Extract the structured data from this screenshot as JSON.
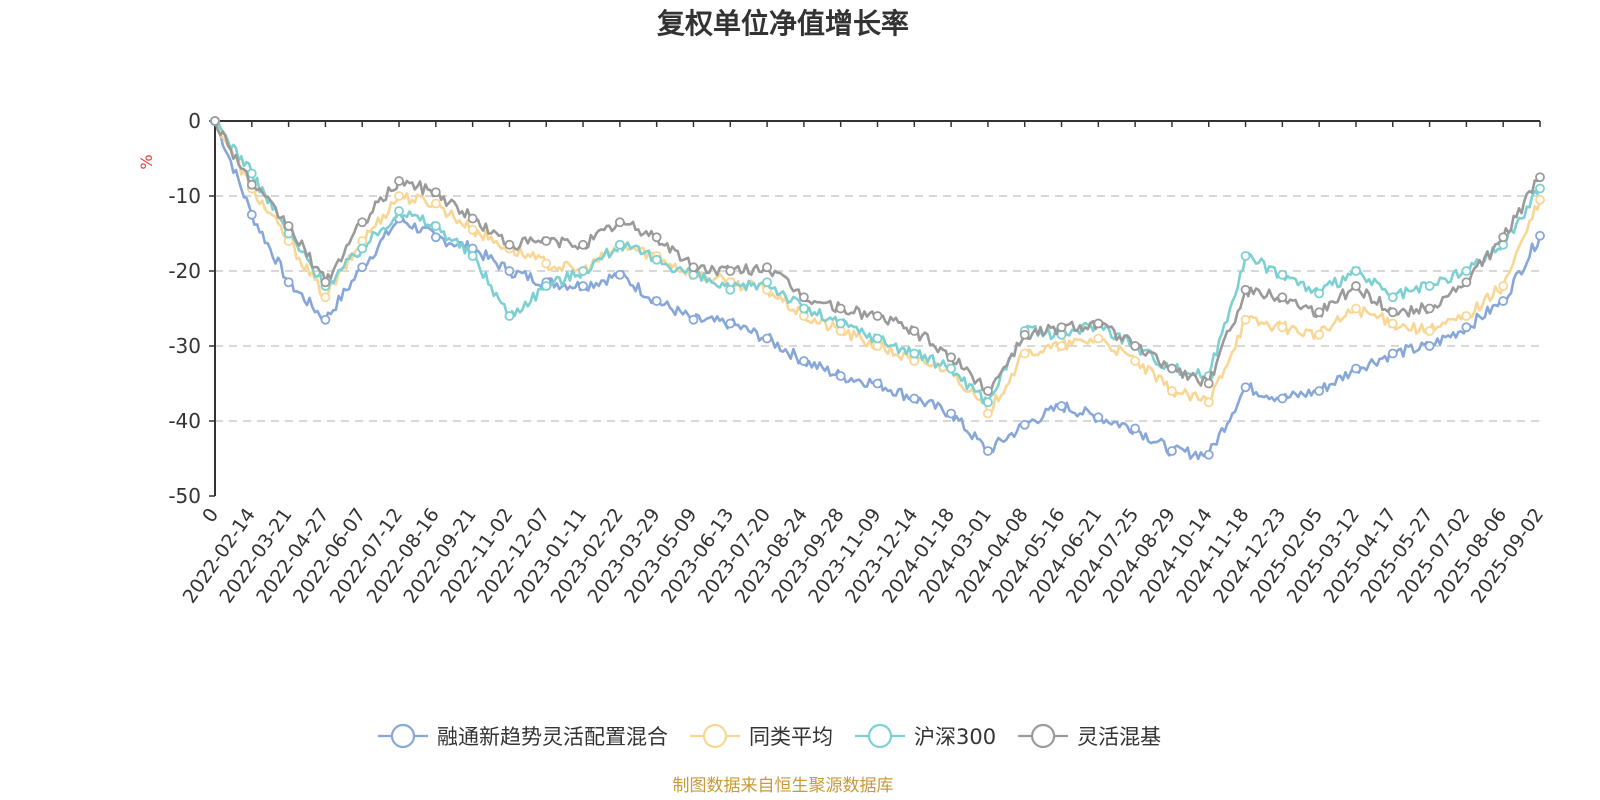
{
  "chart_data": {
    "type": "line",
    "title": "复权单位净值增长率",
    "ylabel": "%",
    "ylim": [
      -50,
      0
    ],
    "yticks": [
      0,
      -10,
      -20,
      -30,
      -40,
      -50
    ],
    "grid": true,
    "legend_position": "bottom",
    "x_tick_labels": [
      "0",
      "2022-02-14",
      "2022-03-21",
      "2022-04-27",
      "2022-06-07",
      "2022-07-12",
      "2022-08-16",
      "2022-09-21",
      "2022-11-02",
      "2022-12-07",
      "2023-01-11",
      "2023-02-22",
      "2023-03-29",
      "2023-05-09",
      "2023-06-13",
      "2023-07-20",
      "2023-08-24",
      "2023-09-28",
      "2023-11-09",
      "2023-12-14",
      "2024-01-18",
      "2024-03-01",
      "2024-04-08",
      "2024-05-16",
      "2024-06-21",
      "2024-07-25",
      "2024-08-29",
      "2024-10-14",
      "2024-11-18",
      "2024-12-23",
      "2025-02-05",
      "2025-03-12",
      "2025-04-17",
      "2025-05-27",
      "2025-07-02",
      "2025-08-06",
      "2025-09-02"
    ],
    "series": [
      {
        "name": "融通新趋势灵活配置混合",
        "color": "#87a7d9",
        "values": [
          0,
          -12.5,
          -21.5,
          -26.5,
          -19.5,
          -13,
          -15.5,
          -17,
          -20,
          -21.5,
          -22,
          -20.5,
          -24,
          -26.5,
          -27,
          -29,
          -32,
          -34,
          -35,
          -37,
          -39,
          -44,
          -40.5,
          -38,
          -39.5,
          -41,
          -44,
          -44.5,
          -35.5,
          -37,
          -36,
          -33,
          -31,
          -30,
          -27.5,
          -24,
          -15.3
        ]
      },
      {
        "name": "同类平均",
        "color": "#fad694",
        "values": [
          0,
          -9,
          -16,
          -23.5,
          -16,
          -10,
          -11,
          -14.5,
          -17,
          -19,
          -20,
          -16.5,
          -18,
          -20.5,
          -21.5,
          -22.5,
          -26,
          -28,
          -30,
          -32,
          -33,
          -39,
          -31,
          -30,
          -29,
          -32,
          -36,
          -37.5,
          -26.5,
          -27.5,
          -28.5,
          -25,
          -27,
          -28,
          -26,
          -22,
          -10.5
        ]
      },
      {
        "name": "沪深300",
        "color": "#7dd0d2",
        "values": [
          0,
          -7,
          -15,
          -22,
          -17,
          -12,
          -14,
          -18,
          -26,
          -22,
          -20,
          -16.5,
          -18.5,
          -20.5,
          -22.5,
          -21.5,
          -25,
          -27,
          -29,
          -31,
          -33,
          -37.5,
          -28,
          -28.5,
          -27,
          -30,
          -33,
          -34,
          -18,
          -20.5,
          -23,
          -20,
          -23.5,
          -22,
          -20,
          -16.5,
          -9
        ]
      },
      {
        "name": "灵活混基",
        "color": "#9a9a9a",
        "values": [
          0,
          -8.5,
          -14,
          -21.5,
          -13.5,
          -8,
          -9.5,
          -13,
          -16.5,
          -16,
          -16.5,
          -13.5,
          -15.5,
          -19.5,
          -20,
          -19.5,
          -23.5,
          -25,
          -26,
          -28,
          -31.5,
          -36,
          -28.5,
          -27.5,
          -27,
          -30,
          -33,
          -35,
          -22.5,
          -23.5,
          -25.5,
          -22,
          -25.5,
          -25,
          -21.5,
          -15.5,
          -7.5
        ]
      }
    ]
  },
  "source_text": "制图数据来自恒生聚源数据库",
  "colors": {
    "axis": "#333333",
    "grid": "#cccccc",
    "ylabel": "#e03c31",
    "source": "#c99a3a"
  }
}
